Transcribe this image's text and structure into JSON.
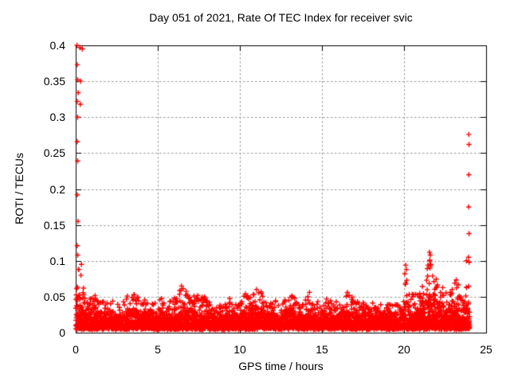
{
  "window": {
    "background_color": "#ffffff"
  },
  "chart_data": {
    "type": "scatter",
    "title": "Day 051 of 2021, Rate Of TEC Index for receiver svic",
    "xlabel": "GPS time / hours",
    "ylabel": "ROTI / TECUs",
    "xlim": [
      0,
      25
    ],
    "ylim": [
      0,
      0.4
    ],
    "xticks": [
      {
        "v": 0,
        "label": "0"
      },
      {
        "v": 5,
        "label": "5"
      },
      {
        "v": 10,
        "label": "10"
      },
      {
        "v": 15,
        "label": "15"
      },
      {
        "v": 20,
        "label": "20"
      },
      {
        "v": 25,
        "label": "25"
      }
    ],
    "yticks": [
      {
        "v": 0,
        "label": "0"
      },
      {
        "v": 0.05,
        "label": "0.05"
      },
      {
        "v": 0.1,
        "label": "0.1"
      },
      {
        "v": 0.15,
        "label": "0.15"
      },
      {
        "v": 0.2,
        "label": "0.2"
      },
      {
        "v": 0.25,
        "label": "0.25"
      },
      {
        "v": 0.3,
        "label": "0.3"
      },
      {
        "v": 0.35,
        "label": "0.35"
      },
      {
        "v": 0.4,
        "label": "0.4"
      }
    ],
    "grid": true,
    "legend": "none",
    "marker": "plus",
    "marker_color": "#ff0000",
    "grid_color": "#999999",
    "axis_color": "#000000",
    "band": {
      "description": "dense ROTI band: peak envelope vs GPS hour, base level of band",
      "base": 0.007,
      "sample_step_hours": 0.0095,
      "points_per_sample": 2,
      "envelope": [
        [
          0.0,
          0.105
        ],
        [
          0.15,
          0.11
        ],
        [
          0.3,
          0.085
        ],
        [
          0.5,
          0.058
        ],
        [
          0.7,
          0.065
        ],
        [
          0.9,
          0.05
        ],
        [
          1.1,
          0.06
        ],
        [
          1.4,
          0.042
        ],
        [
          1.7,
          0.045
        ],
        [
          2.0,
          0.04
        ],
        [
          2.2,
          0.052
        ],
        [
          2.5,
          0.042
        ],
        [
          2.8,
          0.04
        ],
        [
          3.1,
          0.05
        ],
        [
          3.4,
          0.063
        ],
        [
          3.7,
          0.058
        ],
        [
          4.0,
          0.042
        ],
        [
          4.3,
          0.05
        ],
        [
          4.6,
          0.04
        ],
        [
          4.9,
          0.045
        ],
        [
          5.2,
          0.05
        ],
        [
          5.5,
          0.042
        ],
        [
          5.8,
          0.046
        ],
        [
          6.1,
          0.05
        ],
        [
          6.4,
          0.065
        ],
        [
          6.7,
          0.06
        ],
        [
          7.0,
          0.05
        ],
        [
          7.3,
          0.058
        ],
        [
          7.6,
          0.048
        ],
        [
          7.9,
          0.052
        ],
        [
          8.2,
          0.042
        ],
        [
          8.5,
          0.035
        ],
        [
          8.8,
          0.04
        ],
        [
          9.1,
          0.044
        ],
        [
          9.4,
          0.046
        ],
        [
          9.7,
          0.04
        ],
        [
          10.0,
          0.042
        ],
        [
          10.3,
          0.056
        ],
        [
          10.6,
          0.05
        ],
        [
          10.9,
          0.062
        ],
        [
          11.2,
          0.058
        ],
        [
          11.5,
          0.05
        ],
        [
          11.8,
          0.042
        ],
        [
          12.1,
          0.046
        ],
        [
          12.4,
          0.042
        ],
        [
          12.7,
          0.048
        ],
        [
          13.0,
          0.046
        ],
        [
          13.3,
          0.06
        ],
        [
          13.6,
          0.054
        ],
        [
          13.9,
          0.042
        ],
        [
          14.2,
          0.058
        ],
        [
          14.5,
          0.042
        ],
        [
          14.8,
          0.044
        ],
        [
          15.1,
          0.05
        ],
        [
          15.4,
          0.046
        ],
        [
          15.7,
          0.048
        ],
        [
          16.0,
          0.042
        ],
        [
          16.3,
          0.05
        ],
        [
          16.6,
          0.056
        ],
        [
          16.9,
          0.05
        ],
        [
          17.2,
          0.046
        ],
        [
          17.5,
          0.04
        ],
        [
          17.8,
          0.038
        ],
        [
          18.1,
          0.042
        ],
        [
          18.4,
          0.036
        ],
        [
          18.7,
          0.04
        ],
        [
          19.0,
          0.042
        ],
        [
          19.3,
          0.04
        ],
        [
          19.6,
          0.044
        ],
        [
          19.9,
          0.055
        ],
        [
          20.1,
          0.08
        ],
        [
          20.3,
          0.07
        ],
        [
          20.6,
          0.055
        ],
        [
          20.9,
          0.065
        ],
        [
          21.2,
          0.06
        ],
        [
          21.5,
          0.1
        ],
        [
          21.7,
          0.11
        ],
        [
          21.9,
          0.08
        ],
        [
          22.1,
          0.075
        ],
        [
          22.3,
          0.08
        ],
        [
          22.6,
          0.062
        ],
        [
          22.9,
          0.068
        ],
        [
          23.2,
          0.072
        ],
        [
          23.5,
          0.06
        ],
        [
          23.8,
          0.068
        ],
        [
          24.0,
          0.08
        ]
      ]
    },
    "outliers": [
      [
        0.08,
        0.4
      ],
      [
        0.25,
        0.397
      ],
      [
        0.4,
        0.395
      ],
      [
        0.1,
        0.373
      ],
      [
        0.12,
        0.352
      ],
      [
        0.3,
        0.35
      ],
      [
        0.15,
        0.334
      ],
      [
        0.1,
        0.322
      ],
      [
        0.28,
        0.318
      ],
      [
        0.12,
        0.3
      ],
      [
        0.1,
        0.266
      ],
      [
        0.12,
        0.239
      ],
      [
        0.1,
        0.192
      ],
      [
        0.14,
        0.155
      ],
      [
        0.1,
        0.121
      ],
      [
        0.12,
        0.108
      ],
      [
        0.35,
        0.095
      ],
      [
        0.2,
        0.088
      ],
      [
        20.1,
        0.094
      ],
      [
        20.15,
        0.088
      ],
      [
        20.05,
        0.082
      ],
      [
        21.55,
        0.112
      ],
      [
        21.6,
        0.108
      ],
      [
        21.57,
        0.1
      ],
      [
        21.63,
        0.095
      ],
      [
        21.58,
        0.09
      ],
      [
        23.8,
        0.1
      ],
      [
        23.95,
        0.276
      ],
      [
        23.96,
        0.262
      ],
      [
        23.95,
        0.22
      ],
      [
        23.94,
        0.175
      ],
      [
        23.96,
        0.138
      ],
      [
        23.93,
        0.105
      ],
      [
        23.97,
        0.098
      ]
    ]
  }
}
